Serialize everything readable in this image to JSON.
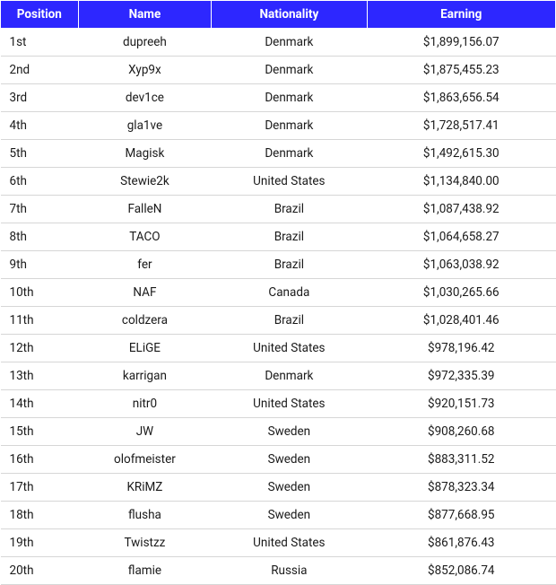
{
  "table": {
    "header_bg": "#2d27ff",
    "header_fg": "#ffffff",
    "row_border": "#d6d6d6",
    "text_color": "#1a1a1a",
    "font_size": 13.5,
    "columns": [
      {
        "key": "position",
        "label": "Position",
        "width_pct": 14,
        "align": "left"
      },
      {
        "key": "name",
        "label": "Name",
        "width_pct": 24,
        "align": "center"
      },
      {
        "key": "nationality",
        "label": "Nationality",
        "width_pct": 28,
        "align": "center"
      },
      {
        "key": "earning",
        "label": "Earning",
        "width_pct": 34,
        "align": "center"
      }
    ],
    "rows": [
      {
        "position": "1st",
        "name": "dupreeh",
        "nationality": "Denmark",
        "earning": "$1,899,156.07"
      },
      {
        "position": "2nd",
        "name": "Xyp9x",
        "nationality": "Denmark",
        "earning": "$1,875,455.23"
      },
      {
        "position": "3rd",
        "name": "dev1ce",
        "nationality": "Denmark",
        "earning": "$1,863,656.54"
      },
      {
        "position": "4th",
        "name": "gla1ve",
        "nationality": "Denmark",
        "earning": "$1,728,517.41"
      },
      {
        "position": "5th",
        "name": "Magisk",
        "nationality": "Denmark",
        "earning": "$1,492,615.30"
      },
      {
        "position": "6th",
        "name": "Stewie2k",
        "nationality": "United States",
        "earning": "$1,134,840.00"
      },
      {
        "position": "7th",
        "name": "FalleN",
        "nationality": "Brazil",
        "earning": "$1,087,438.92"
      },
      {
        "position": "8th",
        "name": "TACO",
        "nationality": "Brazil",
        "earning": "$1,064,658.27"
      },
      {
        "position": "9th",
        "name": "fer",
        "nationality": "Brazil",
        "earning": "$1,063,038.92"
      },
      {
        "position": "10th",
        "name": "NAF",
        "nationality": "Canada",
        "earning": "$1,030,265.66"
      },
      {
        "position": "11th",
        "name": "coldzera",
        "nationality": "Brazil",
        "earning": "$1,028,401.46"
      },
      {
        "position": "12th",
        "name": "ELiGE",
        "nationality": "United States",
        "earning": "$978,196.42"
      },
      {
        "position": "13th",
        "name": "karrigan",
        "nationality": "Denmark",
        "earning": "$972,335.39"
      },
      {
        "position": "14th",
        "name": "nitr0",
        "nationality": "United States",
        "earning": "$920,151.73"
      },
      {
        "position": "15th",
        "name": "JW",
        "nationality": "Sweden",
        "earning": "$908,260.68"
      },
      {
        "position": "16th",
        "name": "olofmeister",
        "nationality": "Sweden",
        "earning": "$883,311.52"
      },
      {
        "position": "17th",
        "name": "KRiMZ",
        "nationality": "Sweden",
        "earning": "$878,323.34"
      },
      {
        "position": "18th",
        "name": "flusha",
        "nationality": "Sweden",
        "earning": "$877,668.95"
      },
      {
        "position": "19th",
        "name": "Twistzz",
        "nationality": "United States",
        "earning": "$861,876.43"
      },
      {
        "position": "20th",
        "name": "flamie",
        "nationality": "Russia",
        "earning": "$852,086.74"
      }
    ]
  }
}
